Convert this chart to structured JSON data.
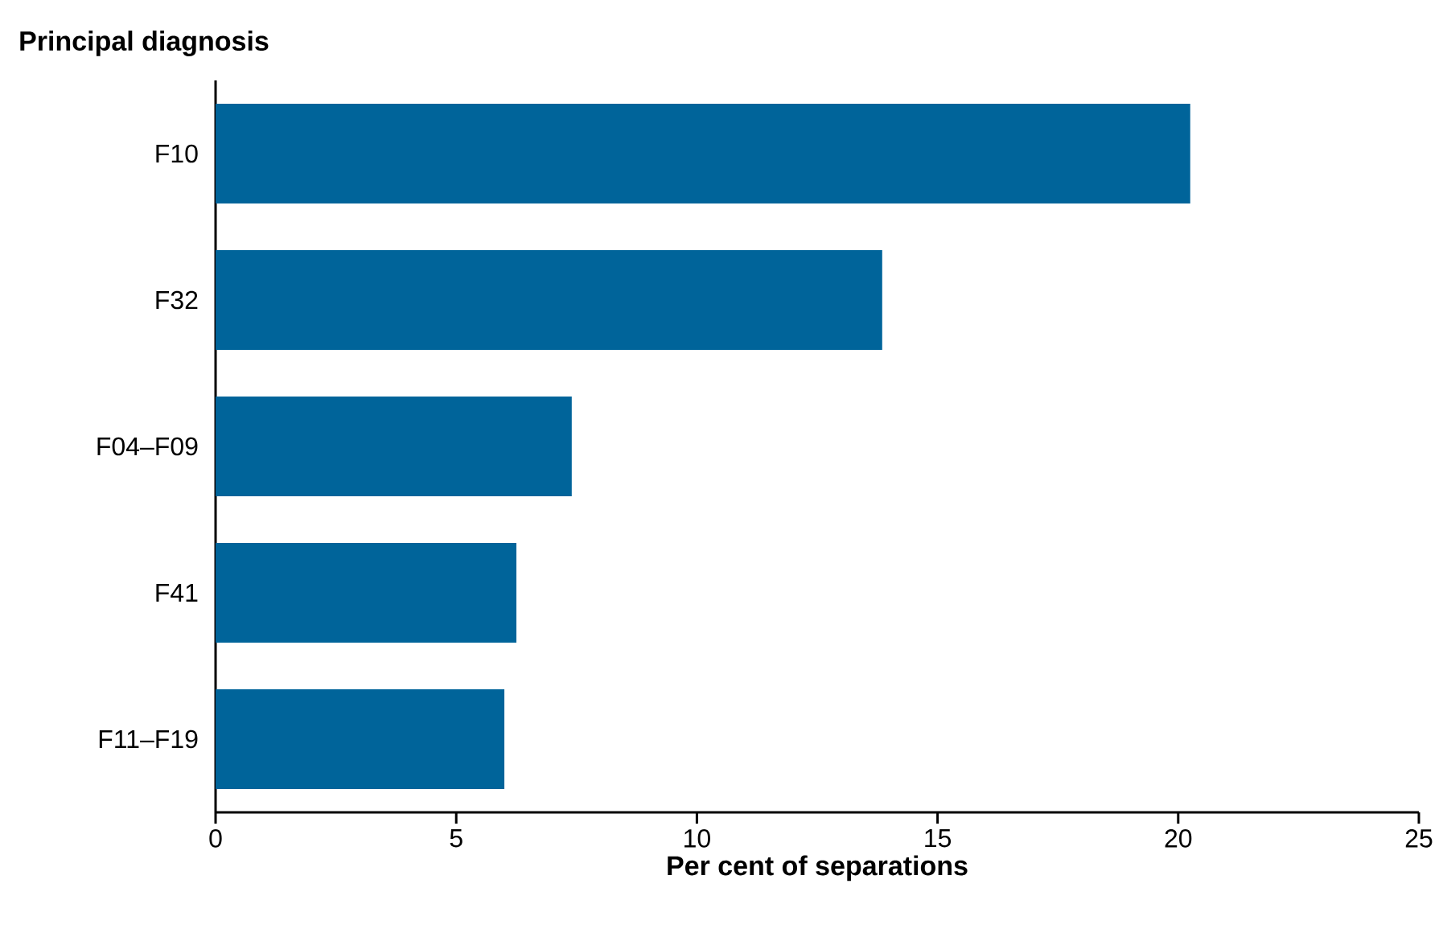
{
  "chart_data": {
    "type": "bar",
    "orientation": "horizontal",
    "xlabel": "Per cent of separations",
    "ylabel": "Principal diagnosis",
    "categories": [
      "F10",
      "F32",
      "F04–F09",
      "F41",
      "F11–F19"
    ],
    "values": [
      20.25,
      13.85,
      7.4,
      6.25,
      6.0
    ],
    "color": "#00649a",
    "xlim": [
      0,
      25
    ],
    "xticks": [
      0,
      5,
      10,
      15,
      20,
      25
    ]
  }
}
